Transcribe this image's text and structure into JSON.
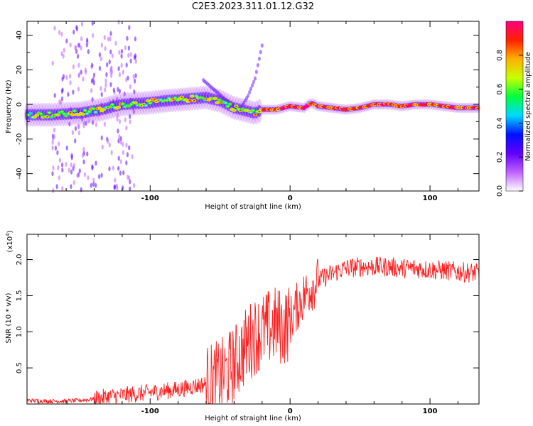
{
  "figure": {
    "title": "C2E3.2023.311.01.12.G32"
  },
  "colorbar": {
    "label": "Normalized spectral amplitude",
    "ticks": [
      "0.0",
      "0.2",
      "0.4",
      "0.6",
      "0.8"
    ],
    "tick_values": [
      0.0,
      0.2,
      0.4,
      0.6,
      0.8
    ],
    "range": [
      0,
      1
    ],
    "colors": [
      "#ffffff",
      "#c060ff",
      "#6000ff",
      "#0010ff",
      "#00d8ff",
      "#00ff40",
      "#c8ff00",
      "#ffb000",
      "#ff2000",
      "#ff0080"
    ]
  },
  "chart_data": [
    {
      "type": "heatmap",
      "xlabel": "Height of straight line (km)",
      "ylabel": "Frequency (Hz)",
      "xlim": [
        -188,
        135
      ],
      "ylim": [
        -50,
        48
      ],
      "xticks": [
        -100,
        0,
        100
      ],
      "xtick_labels": [
        "-100",
        "0",
        "100"
      ],
      "yticks": [
        -40,
        -20,
        0,
        20,
        40
      ],
      "ytick_labels": [
        "-40",
        "-20",
        "0",
        "20",
        "40"
      ],
      "ridge_line": {
        "x": [
          -188,
          -170,
          -150,
          -135,
          -120,
          -100,
          -90,
          -75,
          -60,
          -50,
          -40,
          -30,
          -25,
          -20,
          -10,
          0,
          10,
          15,
          20,
          30,
          40,
          50,
          60,
          70,
          80,
          90,
          100,
          110,
          120,
          135
        ],
        "y": [
          -6,
          -6,
          -5,
          -3,
          0,
          1,
          2,
          3,
          4,
          2,
          -2,
          -4,
          -5,
          -3,
          -3,
          -1,
          -2,
          1,
          -1,
          -2,
          -3,
          -2,
          0,
          0,
          -1,
          0,
          0,
          -1,
          -2,
          -2
        ]
      },
      "branch": {
        "x": [
          -62,
          -55,
          -48,
          -42,
          -36,
          -30,
          -25,
          -20
        ],
        "y": [
          14,
          9,
          4,
          0,
          -3,
          5,
          15,
          34
        ]
      }
    },
    {
      "type": "line",
      "xlabel": "Height of straight line (km)",
      "ylabel": "SNR (10 * v/v)",
      "ylabel_multiplier": "(x10",
      "ylabel_multiplier_exp": "4",
      "ylabel_multiplier_close": ")",
      "xlim": [
        -188,
        135
      ],
      "ylim": [
        0,
        2.35
      ],
      "xticks": [
        -100,
        0,
        100
      ],
      "xtick_labels": [
        "-100",
        "0",
        "100"
      ],
      "yticks": [
        0.5,
        1.0,
        1.5,
        2.0
      ],
      "ytick_labels": [
        "0.5",
        "1.0",
        "1.5",
        "2.0"
      ],
      "series": [
        {
          "color": "#ff2020",
          "x": [
            -188,
            -175,
            -160,
            -150,
            -140,
            -130,
            -120,
            -110,
            -100,
            -90,
            -80,
            -70,
            -60,
            -50,
            -45,
            -40,
            -35,
            -30,
            -25,
            -20,
            -15,
            -10,
            -5,
            0,
            5,
            10,
            15,
            20,
            25,
            30,
            35,
            40,
            50,
            60,
            70,
            80,
            90,
            100,
            110,
            120,
            130,
            135
          ],
          "y": [
            0.05,
            0.04,
            0.04,
            0.05,
            0.07,
            0.1,
            0.12,
            0.14,
            0.16,
            0.18,
            0.2,
            0.24,
            0.28,
            0.35,
            0.45,
            0.55,
            0.7,
            0.85,
            0.95,
            1.0,
            1.05,
            1.1,
            1.05,
            1.15,
            1.35,
            1.5,
            1.62,
            1.7,
            1.76,
            1.8,
            1.85,
            1.88,
            1.9,
            1.9,
            1.9,
            1.88,
            1.88,
            1.86,
            1.85,
            1.83,
            1.82,
            1.8
          ]
        }
      ]
    }
  ]
}
